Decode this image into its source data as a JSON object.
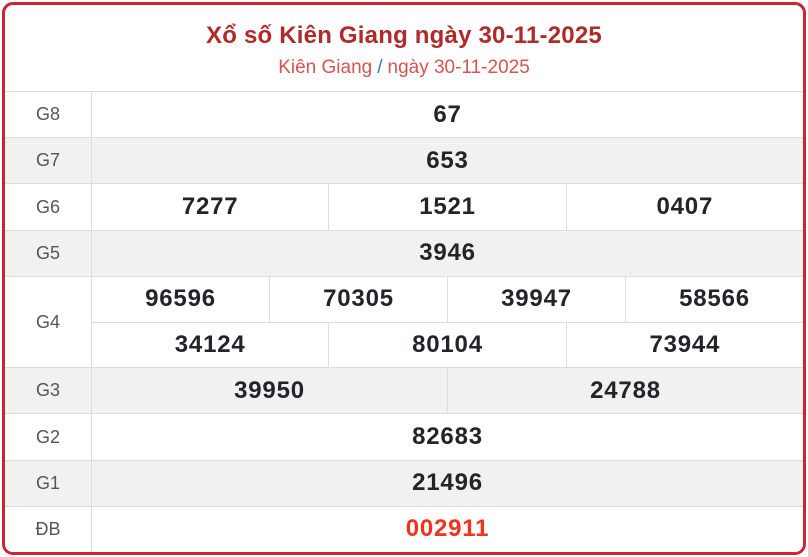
{
  "header": {
    "title": "Xổ số Kiên Giang ngày 30-11-2025",
    "subtitle_province": "Kiên Giang",
    "subtitle_separator": "/",
    "subtitle_date": "ngày 30-11-2025"
  },
  "colors": {
    "card_border": "#cf2330",
    "title": "#b02a2a",
    "subtitle": "#d9534f",
    "separator": "#337ab7",
    "label": "#555555",
    "number": "#212529",
    "special_number": "#f0321e",
    "shade_row_bg": "#f1f1f1",
    "grid_line": "#dddddd"
  },
  "table": {
    "rows": [
      {
        "id": "g8",
        "label": "G8",
        "shade": false,
        "special": false,
        "groups": [
          [
            "67"
          ]
        ]
      },
      {
        "id": "g7",
        "label": "G7",
        "shade": true,
        "special": false,
        "groups": [
          [
            "653"
          ]
        ]
      },
      {
        "id": "g6",
        "label": "G6",
        "shade": false,
        "special": false,
        "groups": [
          [
            "7277",
            "1521",
            "0407"
          ]
        ]
      },
      {
        "id": "g5",
        "label": "G5",
        "shade": true,
        "special": false,
        "groups": [
          [
            "3946"
          ]
        ]
      },
      {
        "id": "g4",
        "label": "G4",
        "shade": false,
        "special": false,
        "groups": [
          [
            "96596",
            "70305",
            "39947",
            "58566"
          ],
          [
            "34124",
            "80104",
            "73944"
          ]
        ]
      },
      {
        "id": "g3",
        "label": "G3",
        "shade": true,
        "special": false,
        "groups": [
          [
            "39950",
            "24788"
          ]
        ]
      },
      {
        "id": "g2",
        "label": "G2",
        "shade": false,
        "special": false,
        "groups": [
          [
            "82683"
          ]
        ]
      },
      {
        "id": "g1",
        "label": "G1",
        "shade": true,
        "special": false,
        "groups": [
          [
            "21496"
          ]
        ]
      },
      {
        "id": "db",
        "label": "ĐB",
        "shade": false,
        "special": true,
        "groups": [
          [
            "002911"
          ]
        ]
      }
    ]
  }
}
